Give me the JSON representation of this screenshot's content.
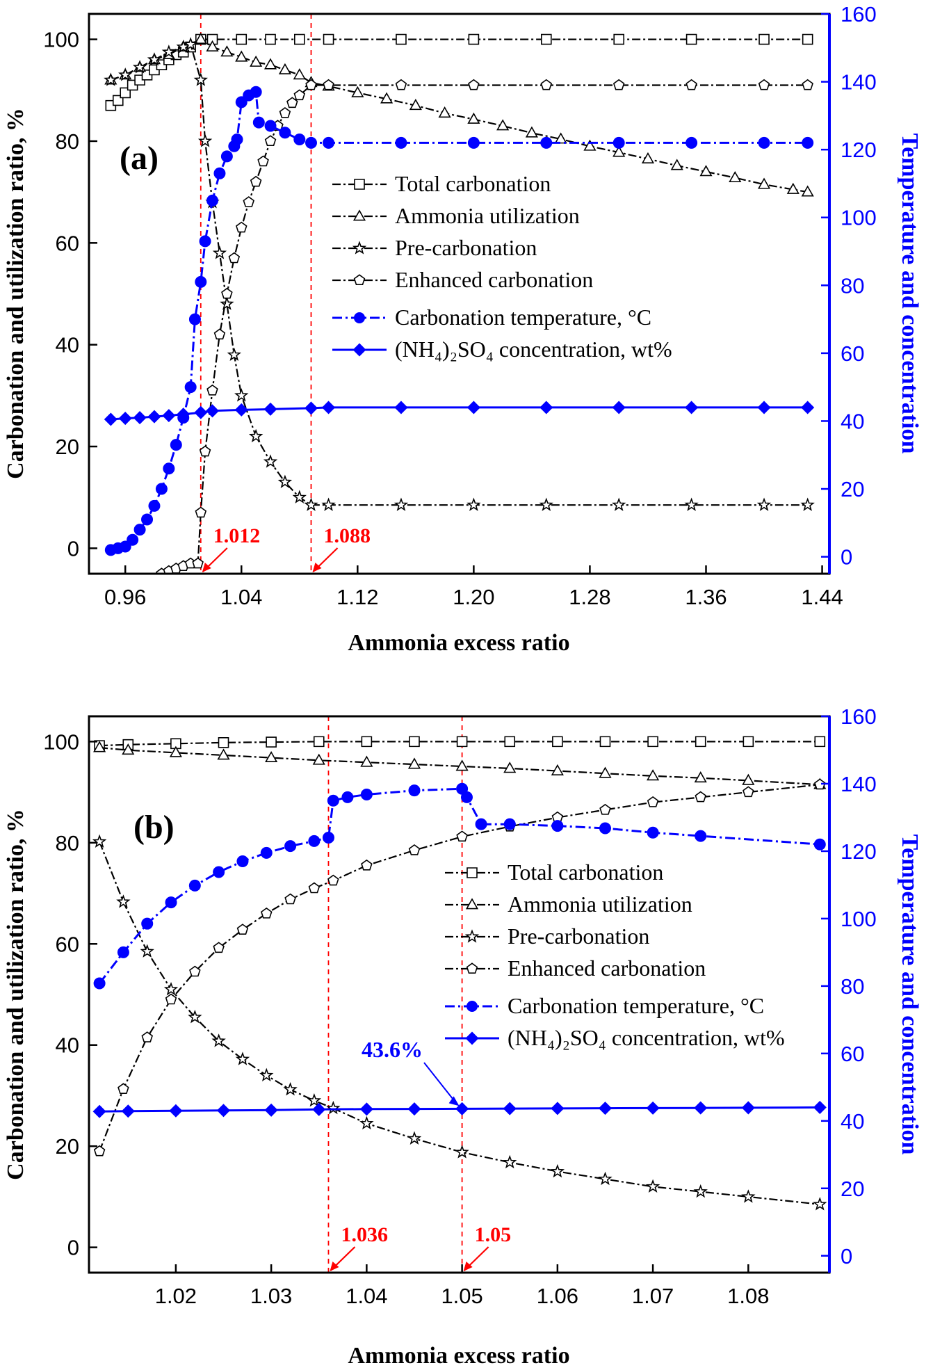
{
  "colors": {
    "black_series": "#000000",
    "blue_series": "#0000ff",
    "annotation_red": "#ff0000",
    "axis_right": "#0000ff"
  },
  "legend_items": [
    {
      "label": "Total carbonation",
      "marker": "square",
      "color": "#000000",
      "line": "black"
    },
    {
      "label": "Ammonia utilization",
      "marker": "triangle",
      "color": "#000000",
      "line": "black"
    },
    {
      "label": "Pre-carbonation",
      "marker": "star",
      "color": "#000000",
      "line": "black"
    },
    {
      "label": "Enhanced carbonation",
      "marker": "pentagon",
      "color": "#000000",
      "line": "black"
    },
    {
      "label": "Carbonation temperature, °C",
      "marker": "circle",
      "color": "#0000ff",
      "line": "blue"
    },
    {
      "label": "(NH₄)₂SO₄ concentration, wt%",
      "marker": "diamond",
      "color": "#0000ff",
      "line": "blue"
    }
  ],
  "chart_data": [
    {
      "panel_label": "(a)",
      "type": "line",
      "xlabel": "Ammonia excess ratio",
      "ylabel": "Carbonation and utilization ratio, %",
      "ylabel_right": "Temperature and concentration",
      "xlim": [
        0.935,
        1.445
      ],
      "ylim": [
        -5,
        105
      ],
      "ylim_right": [
        -5,
        160
      ],
      "x_ticks": [
        "0.96",
        "1.04",
        "1.12",
        "1.20",
        "1.28",
        "1.36",
        "1.44"
      ],
      "y_ticks": [
        "0",
        "20",
        "40",
        "60",
        "80",
        "100"
      ],
      "y_ticks_right": [
        "0",
        "20",
        "40",
        "60",
        "80",
        "100",
        "120",
        "140",
        "160"
      ],
      "legend_position": "center-right",
      "vlines": [
        {
          "x": 1.012,
          "label": "1.012"
        },
        {
          "x": 1.088,
          "label": "1.088"
        }
      ],
      "series": [
        {
          "name": "Total carbonation",
          "axis": "left",
          "style": "dash-dot",
          "x": [
            0.95,
            0.955,
            0.96,
            0.965,
            0.97,
            0.975,
            0.98,
            0.985,
            0.99,
            0.995,
            1.0,
            1.005,
            1.012,
            1.02,
            1.04,
            1.06,
            1.08,
            1.1,
            1.15,
            1.2,
            1.25,
            1.3,
            1.35,
            1.4,
            1.43
          ],
          "y": [
            87,
            88,
            89.5,
            91,
            92,
            93,
            94,
            95,
            96,
            97,
            97.5,
            98.5,
            100,
            100,
            100,
            100,
            100,
            100,
            100,
            100,
            100,
            100,
            100,
            100,
            100
          ]
        },
        {
          "name": "Ammonia utilization",
          "axis": "left",
          "style": "dash-dot",
          "x": [
            0.95,
            0.96,
            0.97,
            0.98,
            0.99,
            1.0,
            1.012,
            1.02,
            1.03,
            1.04,
            1.05,
            1.06,
            1.07,
            1.08,
            1.088,
            1.1,
            1.12,
            1.14,
            1.16,
            1.18,
            1.2,
            1.22,
            1.24,
            1.26,
            1.28,
            1.3,
            1.32,
            1.34,
            1.36,
            1.38,
            1.4,
            1.42,
            1.43
          ],
          "y": [
            92,
            93,
            94.5,
            96,
            97,
            98.5,
            100,
            98.5,
            97.5,
            96.5,
            95.5,
            95,
            94,
            93,
            91.5,
            90.8,
            89.5,
            88.3,
            87,
            85.5,
            84.3,
            83,
            81.6,
            80.4,
            79,
            77.8,
            76.5,
            75.2,
            74,
            72.8,
            71.5,
            70.5,
            70
          ]
        },
        {
          "name": "Pre-carbonation",
          "axis": "left",
          "style": "dash-dot",
          "x": [
            0.95,
            0.96,
            0.97,
            0.98,
            0.99,
            1.0,
            1.005,
            1.012,
            1.015,
            1.02,
            1.025,
            1.03,
            1.035,
            1.04,
            1.05,
            1.06,
            1.07,
            1.08,
            1.088,
            1.1,
            1.15,
            1.2,
            1.25,
            1.3,
            1.35,
            1.4,
            1.43
          ],
          "y": [
            92,
            93,
            94.5,
            96,
            97.5,
            98.5,
            99,
            92,
            80,
            68,
            58,
            48,
            38,
            30,
            22,
            17,
            13,
            10,
            8.5,
            8.5,
            8.5,
            8.5,
            8.5,
            8.5,
            8.5,
            8.5,
            8.5
          ]
        },
        {
          "name": "Enhanced carbonation",
          "axis": "left",
          "style": "dash-dot",
          "x": [
            0.985,
            0.99,
            0.995,
            1.0,
            1.005,
            1.01,
            1.012,
            1.015,
            1.02,
            1.025,
            1.03,
            1.035,
            1.04,
            1.045,
            1.05,
            1.055,
            1.06,
            1.065,
            1.07,
            1.075,
            1.08,
            1.088,
            1.1,
            1.15,
            1.2,
            1.25,
            1.3,
            1.35,
            1.4,
            1.43
          ],
          "y": [
            -5,
            -4.5,
            -4,
            -3.5,
            -3,
            -3,
            7,
            19,
            31,
            42,
            50,
            57,
            63,
            68,
            72,
            76,
            80,
            83,
            85.5,
            87.5,
            89,
            91,
            91,
            91,
            91,
            91,
            91,
            91,
            91,
            91
          ]
        },
        {
          "name": "Carbonation temperature, °C",
          "axis": "right",
          "style": "dash-dot",
          "x": [
            0.95,
            0.955,
            0.96,
            0.965,
            0.97,
            0.975,
            0.98,
            0.985,
            0.99,
            0.995,
            1.0,
            1.005,
            1.008,
            1.012,
            1.015,
            1.02,
            1.025,
            1.03,
            1.035,
            1.037,
            1.04,
            1.045,
            1.05,
            1.052,
            1.06,
            1.07,
            1.08,
            1.088,
            1.1,
            1.15,
            1.2,
            1.25,
            1.3,
            1.35,
            1.4,
            1.43
          ],
          "y": [
            2,
            2.5,
            3,
            5,
            8,
            11,
            15,
            20,
            26,
            33,
            41,
            50,
            70,
            81,
            93,
            105,
            113,
            118,
            121,
            123,
            134,
            136,
            137,
            128,
            127,
            125,
            123,
            122,
            122,
            122,
            122,
            122,
            122,
            122,
            122,
            122
          ]
        },
        {
          "name": "(NH₄)₂SO₄ concentration, wt%",
          "axis": "right",
          "style": "solid",
          "x": [
            0.95,
            0.96,
            0.97,
            0.98,
            0.99,
            1.0,
            1.012,
            1.02,
            1.04,
            1.06,
            1.088,
            1.1,
            1.15,
            1.2,
            1.25,
            1.3,
            1.35,
            1.4,
            1.43
          ],
          "y": [
            40.5,
            40.8,
            41.0,
            41.3,
            41.6,
            42.0,
            42.5,
            43.0,
            43.3,
            43.5,
            43.8,
            44.0,
            44.0,
            44.0,
            44.0,
            44.0,
            44.0,
            44.0,
            44.0
          ]
        }
      ]
    },
    {
      "panel_label": "(b)",
      "type": "line",
      "xlabel": "Ammonia excess ratio",
      "ylabel": "Carbonation and utilization ratio, %",
      "ylabel_right": "Temperature and concentration",
      "xlim": [
        1.0109,
        1.0885
      ],
      "ylim": [
        -5,
        105
      ],
      "ylim_right": [
        -5,
        160
      ],
      "x_ticks": [
        "1.02",
        "1.03",
        "1.04",
        "1.05",
        "1.06",
        "1.07",
        "1.08"
      ],
      "y_ticks": [
        "0",
        "20",
        "40",
        "60",
        "80",
        "100"
      ],
      "y_ticks_right": [
        "0",
        "20",
        "40",
        "60",
        "80",
        "100",
        "120",
        "140",
        "160"
      ],
      "legend_position": "center-right",
      "vlines": [
        {
          "x": 1.036,
          "label": "1.036"
        },
        {
          "x": 1.05,
          "label": "1.05"
        }
      ],
      "annotation": {
        "text": "43.6%",
        "x": 1.05,
        "y_right": 43.6
      },
      "series": [
        {
          "name": "Total carbonation",
          "axis": "left",
          "style": "dash-dot",
          "x": [
            1.012,
            1.015,
            1.02,
            1.025,
            1.03,
            1.035,
            1.04,
            1.045,
            1.05,
            1.055,
            1.06,
            1.065,
            1.07,
            1.075,
            1.08,
            1.0875
          ],
          "y": [
            99.2,
            99.4,
            99.6,
            99.8,
            99.9,
            100,
            100,
            100,
            100,
            100,
            100,
            100,
            100,
            100,
            100,
            100
          ]
        },
        {
          "name": "Ammonia utilization",
          "axis": "left",
          "style": "dash-dot",
          "x": [
            1.012,
            1.015,
            1.02,
            1.025,
            1.03,
            1.035,
            1.04,
            1.045,
            1.05,
            1.055,
            1.06,
            1.065,
            1.07,
            1.075,
            1.08,
            1.0875
          ],
          "y": [
            98.8,
            98.3,
            97.8,
            97.3,
            96.8,
            96.3,
            95.9,
            95.5,
            95.1,
            94.7,
            94.2,
            93.7,
            93.2,
            92.8,
            92.3,
            91.5
          ]
        },
        {
          "name": "Pre-carbonation",
          "axis": "left",
          "style": "dash-dot",
          "x": [
            1.012,
            1.0145,
            1.017,
            1.0195,
            1.022,
            1.0245,
            1.027,
            1.0295,
            1.032,
            1.0345,
            1.0365,
            1.04,
            1.045,
            1.05,
            1.055,
            1.06,
            1.065,
            1.07,
            1.075,
            1.08,
            1.0875
          ],
          "y": [
            80.2,
            68.3,
            58.5,
            51,
            45.5,
            40.8,
            37.2,
            34.0,
            31.2,
            29.0,
            27.5,
            24.5,
            21.5,
            18.8,
            16.8,
            15,
            13.5,
            12,
            11,
            10,
            8.5
          ]
        },
        {
          "name": "Enhanced carbonation",
          "axis": "left",
          "style": "dash-dot",
          "x": [
            1.012,
            1.0145,
            1.017,
            1.0195,
            1.022,
            1.0245,
            1.027,
            1.0295,
            1.032,
            1.0345,
            1.0365,
            1.04,
            1.045,
            1.05,
            1.055,
            1.06,
            1.065,
            1.07,
            1.075,
            1.08,
            1.0875
          ],
          "y": [
            19,
            31.3,
            41.5,
            49,
            54.5,
            59.2,
            62.8,
            66.0,
            68.8,
            71.0,
            72.5,
            75.5,
            78.5,
            81.2,
            83.2,
            85,
            86.5,
            88,
            89,
            90,
            91.5
          ]
        },
        {
          "name": "Carbonation temperature, °C",
          "axis": "right",
          "style": "dash-dot",
          "x": [
            1.012,
            1.0145,
            1.017,
            1.0195,
            1.022,
            1.0245,
            1.027,
            1.0295,
            1.032,
            1.0345,
            1.036,
            1.0365,
            1.038,
            1.04,
            1.045,
            1.05,
            1.0505,
            1.052,
            1.055,
            1.06,
            1.065,
            1.07,
            1.075,
            1.0875
          ],
          "y": [
            80.8,
            90,
            98.5,
            104.8,
            109.8,
            113.8,
            117,
            119.5,
            121.5,
            123,
            124,
            135,
            136,
            136.8,
            138,
            138.5,
            136,
            128,
            128,
            127.5,
            126.8,
            125.5,
            124.5,
            122
          ]
        },
        {
          "name": "(NH₄)₂SO₄ concentration, wt%",
          "axis": "right",
          "style": "solid",
          "x": [
            1.012,
            1.015,
            1.02,
            1.025,
            1.03,
            1.035,
            1.04,
            1.045,
            1.05,
            1.055,
            1.06,
            1.065,
            1.07,
            1.075,
            1.08,
            1.0875
          ],
          "y": [
            42.8,
            42.9,
            43.0,
            43.1,
            43.2,
            43.4,
            43.5,
            43.55,
            43.6,
            43.65,
            43.7,
            43.75,
            43.8,
            43.85,
            43.9,
            44.0
          ]
        }
      ]
    }
  ]
}
